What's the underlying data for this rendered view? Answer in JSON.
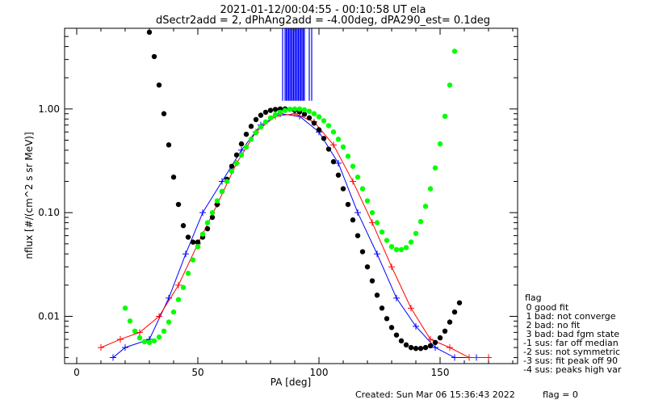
{
  "title_line1": "2021-01-12/00:04:55 - 00:10:58 UT ela",
  "title_line2": "dSectr2add = 2, dPhAng2add = -4.00deg, dPA290_est=   0.1deg",
  "footer_created": "Created: Sun Mar 06 15:36:43 2022",
  "footer_flag": "flag = 0",
  "legend": {
    "title": "flag",
    "items": [
      " 0 good fit",
      " 1 bad: not converge",
      " 2 bad: no fit",
      " 3 bad: bad fgm state",
      "-1 sus: far off median",
      "-2 sus: not symmetric",
      "-3 sus: fit peak off 90",
      "-4 sus: peaks high var"
    ]
  },
  "colors": {
    "blue": "#0000ff",
    "red": "#ff0000",
    "black": "#000000",
    "green": "#00ff00"
  },
  "chart_data": {
    "type": "line",
    "xlabel": "PA [deg]",
    "ylabel": "nflux [#/(cm^2 s sr MeV)]",
    "xlim": [
      -5,
      182
    ],
    "ylim": [
      0.0035,
      6.0
    ],
    "yscale": "log",
    "xticks": [
      0,
      50,
      100,
      150
    ],
    "xtick_labels": [
      "0",
      "50",
      "100",
      "150"
    ],
    "yticks": [
      0.01,
      0.1,
      1.0
    ],
    "ytick_labels": [
      "0.01",
      "0.10",
      "1.00"
    ],
    "grid": false,
    "series": [
      {
        "color": "#0000ff",
        "marker": "plus",
        "x": [
          15,
          20,
          30,
          38,
          45,
          52,
          60,
          68,
          76,
          84,
          92,
          100,
          108,
          116,
          124,
          132,
          140,
          148,
          156,
          165
        ],
        "values": [
          0.004,
          0.005,
          0.006,
          0.015,
          0.04,
          0.1,
          0.2,
          0.4,
          0.7,
          0.9,
          0.85,
          0.6,
          0.3,
          0.1,
          0.04,
          0.015,
          0.008,
          0.005,
          0.004,
          0.004
        ]
      },
      {
        "color": "#ff0000",
        "marker": "plus",
        "x": [
          10,
          18,
          26,
          34,
          42,
          50,
          58,
          66,
          74,
          82,
          90,
          98,
          106,
          114,
          122,
          130,
          138,
          146,
          154,
          162,
          170
        ],
        "values": [
          0.005,
          0.006,
          0.007,
          0.01,
          0.02,
          0.05,
          0.12,
          0.3,
          0.6,
          0.85,
          0.9,
          0.75,
          0.45,
          0.2,
          0.08,
          0.03,
          0.012,
          0.006,
          0.005,
          0.004,
          0.004
        ]
      },
      {
        "color": "#000000",
        "marker": "dot",
        "x": [
          30,
          32,
          34,
          36,
          38,
          40,
          42,
          44,
          46,
          48,
          50,
          52,
          54,
          56,
          58,
          60,
          62,
          64,
          66,
          68,
          70,
          72,
          74,
          76,
          78,
          80,
          82,
          84,
          86,
          88,
          90,
          92,
          94,
          96,
          98,
          100,
          102,
          104,
          106,
          108,
          110,
          112,
          114,
          116,
          118,
          120,
          122,
          124,
          126,
          128,
          130,
          132,
          134,
          136,
          138,
          140,
          142,
          144,
          146,
          148,
          150,
          152,
          154,
          156,
          158
        ],
        "values": [
          5.5,
          3.2,
          1.7,
          0.9,
          0.45,
          0.22,
          0.12,
          0.075,
          0.058,
          0.052,
          0.052,
          0.058,
          0.07,
          0.09,
          0.12,
          0.16,
          0.21,
          0.28,
          0.36,
          0.46,
          0.57,
          0.68,
          0.79,
          0.87,
          0.93,
          0.97,
          0.99,
          1.0,
          1.0,
          0.99,
          0.97,
          0.94,
          0.89,
          0.82,
          0.73,
          0.63,
          0.52,
          0.41,
          0.31,
          0.23,
          0.17,
          0.12,
          0.085,
          0.06,
          0.042,
          0.03,
          0.022,
          0.016,
          0.012,
          0.0095,
          0.0078,
          0.0066,
          0.0058,
          0.0053,
          0.005,
          0.0049,
          0.0049,
          0.005,
          0.0052,
          0.0056,
          0.0062,
          0.0072,
          0.0088,
          0.011,
          0.0135
        ]
      },
      {
        "color": "#00ff00",
        "marker": "dot",
        "x": [
          20,
          22,
          24,
          26,
          28,
          30,
          32,
          34,
          36,
          38,
          40,
          42,
          44,
          46,
          48,
          50,
          52,
          54,
          56,
          58,
          60,
          62,
          64,
          66,
          68,
          70,
          72,
          74,
          76,
          78,
          80,
          82,
          84,
          86,
          88,
          90,
          92,
          94,
          96,
          98,
          100,
          102,
          104,
          106,
          108,
          110,
          112,
          114,
          116,
          118,
          120,
          122,
          124,
          126,
          128,
          130,
          132,
          134,
          136,
          138,
          140,
          142,
          144,
          146,
          148,
          150,
          152,
          154,
          156
        ],
        "values": [
          0.012,
          0.009,
          0.0072,
          0.0062,
          0.0057,
          0.0056,
          0.0058,
          0.0063,
          0.0072,
          0.0088,
          0.011,
          0.0145,
          0.019,
          0.026,
          0.035,
          0.047,
          0.062,
          0.08,
          0.1,
          0.13,
          0.16,
          0.2,
          0.25,
          0.3,
          0.36,
          0.43,
          0.51,
          0.59,
          0.67,
          0.75,
          0.82,
          0.88,
          0.93,
          0.97,
          0.99,
          1.0,
          1.0,
          0.98,
          0.95,
          0.9,
          0.84,
          0.77,
          0.69,
          0.6,
          0.51,
          0.43,
          0.35,
          0.28,
          0.22,
          0.17,
          0.13,
          0.1,
          0.08,
          0.065,
          0.054,
          0.047,
          0.044,
          0.044,
          0.046,
          0.052,
          0.063,
          0.082,
          0.115,
          0.17,
          0.27,
          0.46,
          0.85,
          1.7,
          3.6
        ]
      }
    ],
    "spikes": {
      "color": "#0000ff",
      "x": [
        85,
        86,
        86.5,
        87,
        87.5,
        88,
        88.5,
        89,
        89.5,
        90,
        90.5,
        91,
        91.5,
        92,
        92.5,
        93,
        93.5,
        94,
        96,
        97
      ],
      "values": [
        1.2,
        1.2,
        1.2,
        1.2,
        1.2,
        1.2,
        1.2,
        1.2,
        1.2,
        1.2,
        1.2,
        1.2,
        1.2,
        1.2,
        1.2,
        1.2,
        1.2,
        1.2,
        1.2,
        1.2
      ]
    }
  }
}
